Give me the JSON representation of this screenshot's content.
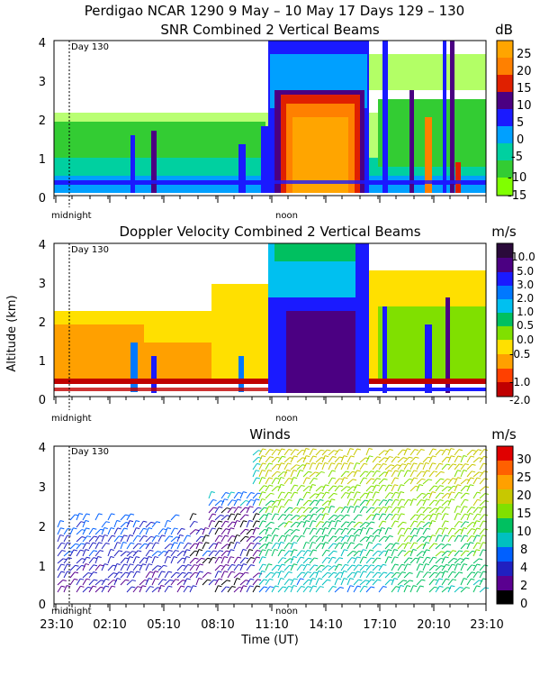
{
  "header": {
    "line1": "Perdigao NCAR 1290   9 May – 10 May 17 Days 129 – 130"
  },
  "panels": {
    "snr": {
      "title": "SNR Combined 2 Vertical Beams",
      "unit": "dB"
    },
    "doppler": {
      "title": "Doppler Velocity Combined 2 Vertical Beams",
      "unit": "m/s"
    },
    "winds": {
      "title": "Winds",
      "unit": "m/s"
    }
  },
  "annotations": {
    "day_label": "Day 130",
    "midnight": "midnight",
    "noon": "noon"
  },
  "axes": {
    "y_ticks": [
      "0",
      "1",
      "2",
      "3",
      "4"
    ],
    "ylabel": "Altitude (km)",
    "xlabel": "Time (UT)",
    "x_ticks": [
      "23:10",
      "02:10",
      "05:10",
      "08:10",
      "11:10",
      "14:10",
      "17:10",
      "20:10",
      "23:10"
    ]
  },
  "chart_data": [
    {
      "type": "heatmap",
      "title": "SNR Combined 2 Vertical Beams",
      "ylim": [
        0,
        4
      ],
      "colorbar": {
        "unit": "dB",
        "labels": [
          "25",
          "20",
          "15",
          "10",
          "5",
          "0",
          "-5",
          "-10",
          "-15"
        ],
        "colors": [
          "#ffa500",
          "#ff8000",
          "#e02000",
          "#4b0082",
          "#1a1aff",
          "#00a0ff",
          "#00d0a0",
          "#33cc33",
          "#80ff00"
        ]
      }
    },
    {
      "type": "heatmap",
      "title": "Doppler Velocity Combined 2 Vertical Beams",
      "ylim": [
        0,
        4
      ],
      "colorbar": {
        "unit": "m/s",
        "labels": [
          "10.0",
          "5.0",
          "3.0",
          "2.0",
          "1.0",
          "0.5",
          "0.0",
          "-0.5",
          "-1.0",
          "-2.0"
        ],
        "colors": [
          "#2a0a3a",
          "#4b0082",
          "#1a1aff",
          "#0078ff",
          "#00c0f0",
          "#00c060",
          "#80e000",
          "#ffe000",
          "#ffa000",
          "#ff4000",
          "#c00000"
        ]
      }
    },
    {
      "type": "scatter",
      "title": "Winds",
      "ylim": [
        0,
        4
      ],
      "colorbar": {
        "unit": "m/s",
        "labels": [
          "30",
          "25",
          "20",
          "15",
          "10",
          "8",
          "4",
          "2",
          "0"
        ],
        "colors": [
          "#e00000",
          "#ff6000",
          "#ffa000",
          "#c8c800",
          "#80e000",
          "#00c060",
          "#00c0c0",
          "#0060ff",
          "#2020c0",
          "#5a0090",
          "#000000"
        ]
      }
    }
  ],
  "colors": {
    "snr": {
      "purple": "#4b0082",
      "blue": "#1a1aff",
      "cyan": "#00a0ff",
      "teal": "#00d0a0",
      "green": "#33cc33",
      "lime": "#80ff00",
      "orange": "#ffa500",
      "darkorange": "#ff8000",
      "red": "#e02000"
    },
    "dop": {
      "darkpurple": "#2a0a3a",
      "purple": "#4b0082",
      "blue": "#1a1aff",
      "blue2": "#0078ff",
      "cyan": "#00c0f0",
      "green": "#00c060",
      "lime": "#80e000",
      "yellow": "#ffe000",
      "orange": "#ffa000",
      "redorange": "#ff4000",
      "red": "#c00000"
    }
  }
}
